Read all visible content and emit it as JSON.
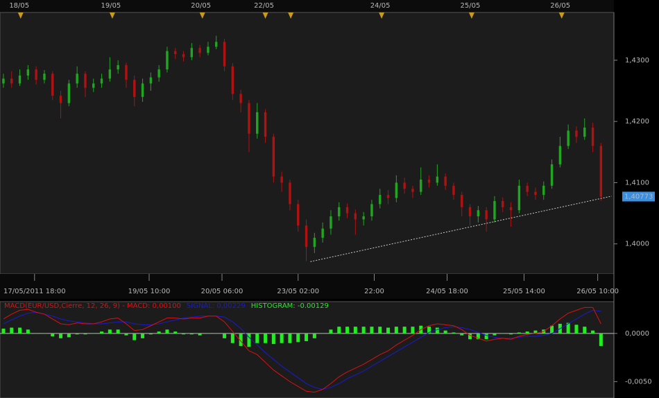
{
  "chart_data": [
    {
      "type": "candlestick",
      "xlim": [
        -0.42,
        74.58
      ],
      "ylim": [
        1.3951,
        1.4378
      ],
      "yticks": [
        {
          "value": 1.4,
          "label": "1,4000"
        },
        {
          "value": 1.41,
          "label": "1,4100"
        },
        {
          "value": 1.42,
          "label": "1,4200"
        },
        {
          "value": 1.43,
          "label": "1,4300"
        }
      ],
      "xticks": [
        {
          "value": 3.8,
          "label": "17/05/2011 18:00"
        },
        {
          "value": 17.8,
          "label": "19/05 10:00"
        },
        {
          "value": 26.7,
          "label": "20/05 06:00"
        },
        {
          "value": 36,
          "label": "23/05 02:00"
        },
        {
          "value": 45.3,
          "label": "22:00"
        },
        {
          "value": 54.2,
          "label": "24/05 18:00"
        },
        {
          "value": 63.6,
          "label": "25/05 14:00"
        },
        {
          "value": 72.6,
          "label": "26/05 10:00"
        }
      ],
      "top_markers": [
        {
          "value": 2.1,
          "label": "18/05"
        },
        {
          "value": 13.3,
          "label": "19/05"
        },
        {
          "value": 24.3,
          "label": "20/05"
        },
        {
          "value": 32,
          "label": "22/05"
        },
        {
          "value": 35.1,
          "label": null
        },
        {
          "value": 46.2,
          "label": "24/05"
        },
        {
          "value": 57.2,
          "label": "25/05"
        },
        {
          "value": 68.2,
          "label": "26/05"
        }
      ],
      "last_price": {
        "value": 1.40773,
        "label": "1,40773"
      },
      "up_color": "#1fa81f",
      "down_color": "#b01212",
      "trendline": {
        "x": [
          37.5,
          74.3
        ],
        "y": [
          1.3971,
          1.4078
        ],
        "color": "#cccccc"
      },
      "open": [
        1.4262,
        1.427,
        1.4262,
        1.4275,
        1.4285,
        1.4268,
        1.4278,
        1.4242,
        1.423,
        1.4262,
        1.4278,
        1.4255,
        1.4262,
        1.427,
        1.4285,
        1.4292,
        1.4268,
        1.424,
        1.4262,
        1.4272,
        1.4285,
        1.4315,
        1.431,
        1.4305,
        1.432,
        1.4312,
        1.4322,
        1.433,
        1.429,
        1.4245,
        1.423,
        1.418,
        1.4215,
        1.4175,
        1.411,
        1.41,
        1.4065,
        1.403,
        1.3995,
        1.401,
        1.4025,
        1.4045,
        1.406,
        1.405,
        1.404,
        1.4045,
        1.4065,
        1.408,
        1.4075,
        1.41,
        1.409,
        1.4085,
        1.4105,
        1.41,
        1.411,
        1.4095,
        1.408,
        1.406,
        1.4045,
        1.4055,
        1.404,
        1.407,
        1.406,
        1.4055,
        1.4095,
        1.4085,
        1.408,
        1.4095,
        1.413,
        1.416,
        1.4185,
        1.4175,
        1.419,
        1.416
      ],
      "high": [
        1.4278,
        1.4282,
        1.4285,
        1.4292,
        1.429,
        1.4284,
        1.4282,
        1.425,
        1.4268,
        1.429,
        1.4282,
        1.427,
        1.4278,
        1.4305,
        1.43,
        1.4296,
        1.4275,
        1.427,
        1.428,
        1.4292,
        1.4322,
        1.432,
        1.4315,
        1.4328,
        1.4325,
        1.433,
        1.434,
        1.4335,
        1.4295,
        1.4252,
        1.4235,
        1.423,
        1.422,
        1.418,
        1.4118,
        1.4105,
        1.4072,
        1.404,
        1.4018,
        1.4035,
        1.4055,
        1.4068,
        1.4066,
        1.4056,
        1.4052,
        1.4072,
        1.409,
        1.4088,
        1.4112,
        1.4108,
        1.4095,
        1.4125,
        1.4112,
        1.413,
        1.4115,
        1.41,
        1.4085,
        1.4065,
        1.4062,
        1.406,
        1.4078,
        1.4076,
        1.4068,
        1.4105,
        1.41,
        1.4092,
        1.4102,
        1.4138,
        1.4175,
        1.4195,
        1.4192,
        1.4205,
        1.4198,
        1.4165
      ],
      "low": [
        1.4255,
        1.4255,
        1.4258,
        1.4268,
        1.426,
        1.4262,
        1.4235,
        1.4205,
        1.4225,
        1.4255,
        1.424,
        1.4248,
        1.4255,
        1.4265,
        1.4278,
        1.4255,
        1.4225,
        1.4232,
        1.425,
        1.4265,
        1.428,
        1.4302,
        1.4298,
        1.43,
        1.4305,
        1.4308,
        1.4318,
        1.4282,
        1.4235,
        1.4215,
        1.415,
        1.4172,
        1.4165,
        1.41,
        1.4085,
        1.4055,
        1.402,
        1.3972,
        1.3985,
        1.4002,
        1.4015,
        1.4038,
        1.4042,
        1.4015,
        1.403,
        1.4038,
        1.4058,
        1.4065,
        1.4068,
        1.4082,
        1.4075,
        1.408,
        1.4092,
        1.4095,
        1.4088,
        1.4072,
        1.4045,
        1.403,
        1.4035,
        1.402,
        1.4035,
        1.4052,
        1.4028,
        1.405,
        1.4078,
        1.4072,
        1.4072,
        1.409,
        1.4125,
        1.4155,
        1.4165,
        1.417,
        1.415,
        1.407
      ],
      "close": [
        1.427,
        1.4262,
        1.4275,
        1.4285,
        1.4268,
        1.4278,
        1.4242,
        1.423,
        1.4262,
        1.4278,
        1.4255,
        1.4262,
        1.427,
        1.4285,
        1.4292,
        1.4268,
        1.424,
        1.4262,
        1.4272,
        1.4285,
        1.4315,
        1.431,
        1.4305,
        1.432,
        1.4312,
        1.4322,
        1.433,
        1.429,
        1.4245,
        1.423,
        1.418,
        1.4215,
        1.4175,
        1.411,
        1.41,
        1.4065,
        1.403,
        1.3995,
        1.401,
        1.4025,
        1.4045,
        1.406,
        1.405,
        1.404,
        1.4045,
        1.4065,
        1.408,
        1.4075,
        1.41,
        1.409,
        1.4085,
        1.4105,
        1.41,
        1.411,
        1.4095,
        1.408,
        1.406,
        1.4045,
        1.4055,
        1.404,
        1.407,
        1.406,
        1.4055,
        1.4095,
        1.4085,
        1.408,
        1.4095,
        1.413,
        1.416,
        1.4185,
        1.4175,
        1.419,
        1.416,
        1.4077
      ]
    },
    {
      "type": "macd",
      "xlim": [
        -0.42,
        74.58
      ],
      "ylim": [
        -0.0067,
        0.0033
      ],
      "yticks": [
        {
          "value": 0,
          "label": "0,0000"
        },
        {
          "value": -0.005,
          "label": "-0,0050"
        }
      ],
      "series": [
        {
          "name": "MACD(EUR/USD,Cierre, 12, 26, 9) -  MACD: 0,00100",
          "color": "#e01010",
          "values": [
            0.0015,
            0.002,
            0.0024,
            0.0025,
            0.0022,
            0.002,
            0.0015,
            0.001,
            0.0009,
            0.0011,
            0.001,
            0.001,
            0.0012,
            0.0015,
            0.0016,
            0.001,
            0.0003,
            0.0004,
            0.0008,
            0.0012,
            0.0016,
            0.0016,
            0.0015,
            0.0016,
            0.0016,
            0.0018,
            0.0018,
            0.0012,
            0.0002,
            -0.0008,
            -0.0018,
            -0.0022,
            -0.003,
            -0.0038,
            -0.0044,
            -0.005,
            -0.0055,
            -0.006,
            -0.0061,
            -0.0058,
            -0.0052,
            -0.0045,
            -0.004,
            -0.0036,
            -0.0032,
            -0.0027,
            -0.0022,
            -0.0018,
            -0.0012,
            -0.0007,
            -0.0002,
            0.0004,
            0.0008,
            0.001,
            0.0009,
            0.0008,
            0.0004,
            -0.0002,
            -0.0005,
            -0.0008,
            -0.0006,
            -0.0005,
            -0.0006,
            -0.0003,
            -0.0001,
            0,
            0.0002,
            0.0008,
            0.0015,
            0.0021,
            0.0024,
            0.0027,
            0.0027,
            0.001
          ]
        },
        {
          "name": "SIGNAL: 0,00229",
          "color": "#1a1ad8",
          "values": [
            0.001,
            0.0014,
            0.0018,
            0.0021,
            0.0022,
            0.002,
            0.0018,
            0.0015,
            0.0013,
            0.0012,
            0.0011,
            0.001,
            0.001,
            0.0011,
            0.0012,
            0.0012,
            0.001,
            0.0009,
            0.0009,
            0.001,
            0.0012,
            0.0014,
            0.0016,
            0.0017,
            0.0018,
            0.0018,
            0.0018,
            0.0017,
            0.0012,
            0.0005,
            -0.0004,
            -0.0012,
            -0.002,
            -0.0027,
            -0.0034,
            -0.004,
            -0.0046,
            -0.0052,
            -0.0056,
            -0.0058,
            -0.0056,
            -0.0052,
            -0.0047,
            -0.0043,
            -0.0039,
            -0.0034,
            -0.0029,
            -0.0024,
            -0.0019,
            -0.0014,
            -0.0009,
            -0.0004,
            0.0001,
            0.0004,
            0.0006,
            0.0007,
            0.0006,
            0.0004,
            0.0001,
            -0.0002,
            -0.0004,
            -0.0005,
            -0.0005,
            -0.0004,
            -0.0003,
            -0.0003,
            -0.0002,
            0,
            0.0005,
            0.001,
            0.0015,
            0.002,
            0.0024,
            0.0023
          ]
        },
        {
          "name": "HISTOGRAM: -0.00129",
          "color": "#22ee22",
          "values": [
            0.0005,
            0.0006,
            0.0006,
            0.0004,
            0,
            0,
            -0.0003,
            -0.0005,
            -0.0004,
            -0.0001,
            -0.0001,
            0,
            0.0002,
            0.0004,
            0.0004,
            -0.0002,
            -0.0007,
            -0.0005,
            -0.0001,
            0.0002,
            0.0004,
            0.0002,
            -0.0001,
            -0.0001,
            -0.0002,
            0,
            0,
            -0.0005,
            -0.001,
            -0.0013,
            -0.0014,
            -0.001,
            -0.001,
            -0.0011,
            -0.001,
            -0.001,
            -0.0009,
            -0.0008,
            -0.0005,
            0,
            0.0004,
            0.0007,
            0.0007,
            0.0007,
            0.0007,
            0.0007,
            0.0007,
            0.0006,
            0.0007,
            0.0007,
            0.0007,
            0.0008,
            0.0007,
            0.0006,
            0.0003,
            0.0001,
            -0.0002,
            -0.0006,
            -0.0006,
            -0.0006,
            -0.0002,
            0,
            -0.0001,
            0.0001,
            0.0002,
            0.0003,
            0.0004,
            0.0008,
            0.001,
            0.0011,
            0.0009,
            0.0007,
            0.0003,
            -0.0013
          ]
        }
      ]
    }
  ]
}
